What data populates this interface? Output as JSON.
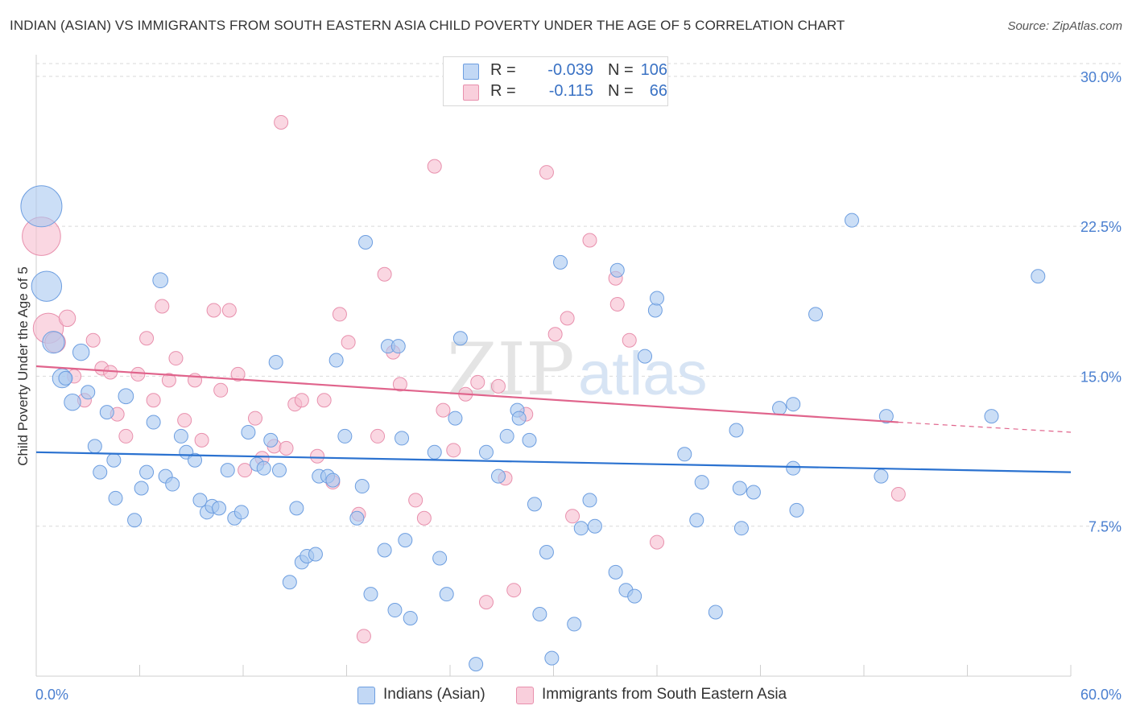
{
  "title": "INDIAN (ASIAN) VS IMMIGRANTS FROM SOUTH EASTERN ASIA CHILD POVERTY UNDER THE AGE OF 5 CORRELATION CHART",
  "source": "Source: ZipAtlas.com",
  "watermark": {
    "zip": "ZIP",
    "atlas": "atlas"
  },
  "legend_top": [
    {
      "r_label": "R =",
      "r_value": "-0.039",
      "n_label": "N =",
      "n_value": "106"
    },
    {
      "r_label": "R =",
      "r_value": "-0.115",
      "n_label": "N =",
      "n_value": "66"
    }
  ],
  "colors": {
    "blue_fill": "#a9c8f0",
    "blue_stroke": "#6d9ee0",
    "blue_line": "#2b72d0",
    "pink_fill": "#f6bccf",
    "pink_stroke": "#e890ad",
    "pink_line": "#e0648c",
    "tick_label": "#4a7fd0",
    "grid": "#d9d9d9"
  },
  "chart_data": {
    "type": "scatter",
    "title": "INDIAN (ASIAN) VS IMMIGRANTS FROM SOUTH EASTERN ASIA CHILD POVERTY UNDER THE AGE OF 5 CORRELATION CHART",
    "xlabel": "",
    "ylabel": "Child Poverty Under the Age of 5",
    "xlim": [
      0,
      60
    ],
    "ylim": [
      0,
      31
    ],
    "x_tick_labels": [
      "0.0%",
      "60.0%"
    ],
    "y_ticks": [
      7.5,
      15.0,
      22.5,
      30.0
    ],
    "y_tick_labels": [
      "7.5%",
      "15.0%",
      "22.5%",
      "30.0%"
    ],
    "legend_position": "top-center",
    "series": [
      {
        "name": "Indians (Asian)",
        "r": -0.039,
        "n": 106,
        "trend": {
          "x": [
            0,
            60
          ],
          "y": [
            11.2,
            10.2
          ]
        },
        "points": [
          [
            0.3,
            23.5,
            3
          ],
          [
            0.6,
            19.5,
            2.2
          ],
          [
            1.0,
            16.7,
            1.6
          ],
          [
            1.5,
            14.9,
            1.4
          ],
          [
            1.7,
            14.9,
            1
          ],
          [
            2.1,
            13.7,
            1.2
          ],
          [
            2.6,
            16.2,
            1.2
          ],
          [
            3.0,
            14.2,
            1
          ],
          [
            3.4,
            11.5,
            1
          ],
          [
            3.7,
            10.2,
            1
          ],
          [
            4.1,
            13.2,
            1
          ],
          [
            4.5,
            10.8,
            1
          ],
          [
            5.2,
            14.0,
            1.1
          ],
          [
            4.6,
            8.9,
            1
          ],
          [
            5.7,
            7.8,
            1
          ],
          [
            6.1,
            9.4,
            1
          ],
          [
            6.4,
            10.2,
            1
          ],
          [
            6.8,
            12.7,
            1
          ],
          [
            7.2,
            19.8,
            1.1
          ],
          [
            7.5,
            10.0,
            1
          ],
          [
            7.9,
            9.6,
            1
          ],
          [
            8.4,
            12.0,
            1
          ],
          [
            8.7,
            11.2,
            1
          ],
          [
            9.2,
            10.8,
            1
          ],
          [
            9.5,
            8.8,
            1
          ],
          [
            9.9,
            8.2,
            1
          ],
          [
            10.2,
            8.5,
            1
          ],
          [
            10.6,
            8.4,
            1
          ],
          [
            11.1,
            10.3,
            1
          ],
          [
            11.5,
            7.9,
            1
          ],
          [
            11.9,
            8.2,
            1
          ],
          [
            12.3,
            12.2,
            1
          ],
          [
            12.8,
            10.6,
            1
          ],
          [
            13.2,
            10.4,
            1
          ],
          [
            13.6,
            11.8,
            1
          ],
          [
            13.9,
            15.7,
            1
          ],
          [
            14.1,
            10.3,
            1
          ],
          [
            14.7,
            4.7,
            1
          ],
          [
            15.1,
            8.4,
            1
          ],
          [
            15.4,
            5.7,
            1
          ],
          [
            15.7,
            6.0,
            1
          ],
          [
            16.2,
            6.1,
            1
          ],
          [
            16.4,
            10.0,
            1
          ],
          [
            16.9,
            10.0,
            1
          ],
          [
            17.2,
            9.8,
            1
          ],
          [
            17.9,
            12.0,
            1
          ],
          [
            17.4,
            15.8,
            1
          ],
          [
            18.6,
            7.9,
            1
          ],
          [
            18.9,
            9.5,
            1
          ],
          [
            19.1,
            21.7,
            1
          ],
          [
            19.4,
            4.1,
            1
          ],
          [
            20.2,
            6.3,
            1
          ],
          [
            20.4,
            16.5,
            1
          ],
          [
            20.8,
            3.3,
            1
          ],
          [
            21.2,
            11.9,
            1
          ],
          [
            21.4,
            6.8,
            1
          ],
          [
            21.7,
            2.9,
            1
          ],
          [
            21.0,
            16.5,
            1
          ],
          [
            23.1,
            11.2,
            1
          ],
          [
            23.4,
            5.9,
            1
          ],
          [
            23.8,
            4.1,
            1
          ],
          [
            24.3,
            12.9,
            1
          ],
          [
            24.6,
            16.9,
            1
          ],
          [
            25.5,
            0.6,
            1
          ],
          [
            26.1,
            11.2,
            1
          ],
          [
            26.8,
            10.0,
            1
          ],
          [
            27.3,
            12.0,
            1
          ],
          [
            27.9,
            13.3,
            1
          ],
          [
            28.0,
            12.9,
            1
          ],
          [
            28.6,
            11.8,
            1
          ],
          [
            28.9,
            8.6,
            1
          ],
          [
            29.2,
            3.1,
            1
          ],
          [
            29.6,
            6.2,
            1
          ],
          [
            29.9,
            0.9,
            1
          ],
          [
            30.4,
            20.7,
            1
          ],
          [
            31.2,
            2.6,
            1
          ],
          [
            31.6,
            7.4,
            1
          ],
          [
            32.1,
            8.8,
            1
          ],
          [
            32.4,
            7.5,
            1
          ],
          [
            33.6,
            5.2,
            1
          ],
          [
            33.7,
            20.3,
            1
          ],
          [
            34.2,
            4.3,
            1
          ],
          [
            34.7,
            4.0,
            1
          ],
          [
            35.3,
            16.0,
            1
          ],
          [
            35.9,
            18.3,
            1
          ],
          [
            36.0,
            18.9,
            1
          ],
          [
            37.6,
            11.1,
            1
          ],
          [
            38.3,
            7.8,
            1
          ],
          [
            38.6,
            9.7,
            1
          ],
          [
            39.4,
            3.2,
            1
          ],
          [
            40.6,
            12.3,
            1
          ],
          [
            40.8,
            9.4,
            1
          ],
          [
            40.9,
            7.4,
            1
          ],
          [
            41.6,
            9.2,
            1
          ],
          [
            43.1,
            13.4,
            1
          ],
          [
            43.9,
            10.4,
            1
          ],
          [
            43.9,
            13.6,
            1
          ],
          [
            44.1,
            8.3,
            1
          ],
          [
            45.2,
            18.1,
            1
          ],
          [
            47.3,
            22.8,
            1
          ],
          [
            49.0,
            10.0,
            1
          ],
          [
            49.3,
            13.0,
            1
          ],
          [
            55.4,
            13.0,
            1
          ],
          [
            58.1,
            20.0,
            1
          ]
        ]
      },
      {
        "name": "Immigrants from South Eastern Asia",
        "r": -0.115,
        "n": 66,
        "trend": {
          "x": [
            0,
            50
          ],
          "y": [
            15.5,
            12.7
          ]
        },
        "trend_dashed": {
          "x": [
            50,
            60
          ],
          "y": [
            12.7,
            12.2
          ]
        },
        "points": [
          [
            0.3,
            22.0,
            2.8
          ],
          [
            0.7,
            17.4,
            2.2
          ],
          [
            1.1,
            16.7,
            1.5
          ],
          [
            1.8,
            17.9,
            1.2
          ],
          [
            2.2,
            15.0,
            1
          ],
          [
            2.8,
            13.8,
            1
          ],
          [
            3.3,
            16.8,
            1
          ],
          [
            3.8,
            15.4,
            1
          ],
          [
            4.3,
            15.2,
            1
          ],
          [
            4.7,
            13.1,
            1
          ],
          [
            5.2,
            12.0,
            1
          ],
          [
            5.9,
            15.1,
            1
          ],
          [
            6.4,
            16.9,
            1
          ],
          [
            6.8,
            13.8,
            1
          ],
          [
            7.3,
            18.5,
            1
          ],
          [
            7.7,
            14.8,
            1
          ],
          [
            8.1,
            15.9,
            1
          ],
          [
            8.6,
            12.8,
            1
          ],
          [
            9.2,
            14.8,
            1
          ],
          [
            9.6,
            11.8,
            1
          ],
          [
            10.3,
            18.3,
            1
          ],
          [
            10.7,
            14.3,
            1
          ],
          [
            11.2,
            18.3,
            1
          ],
          [
            11.7,
            15.1,
            1
          ],
          [
            12.1,
            10.3,
            1
          ],
          [
            12.7,
            12.9,
            1
          ],
          [
            13.1,
            10.9,
            1
          ],
          [
            13.8,
            11.5,
            1
          ],
          [
            14.2,
            27.7,
            1
          ],
          [
            14.5,
            11.4,
            1
          ],
          [
            15.0,
            13.6,
            1
          ],
          [
            15.4,
            13.8,
            1
          ],
          [
            16.3,
            11.0,
            1
          ],
          [
            16.7,
            13.8,
            1
          ],
          [
            17.2,
            9.7,
            1
          ],
          [
            17.6,
            18.1,
            1
          ],
          [
            18.1,
            16.7,
            1
          ],
          [
            18.7,
            8.1,
            1
          ],
          [
            19.0,
            2.0,
            1
          ],
          [
            19.8,
            12.0,
            1
          ],
          [
            20.2,
            20.1,
            1
          ],
          [
            20.7,
            16.2,
            1
          ],
          [
            21.1,
            14.6,
            1
          ],
          [
            22.0,
            8.8,
            1
          ],
          [
            22.5,
            7.9,
            1
          ],
          [
            23.1,
            25.5,
            1
          ],
          [
            23.6,
            13.3,
            1
          ],
          [
            24.2,
            11.3,
            1
          ],
          [
            24.9,
            14.1,
            1
          ],
          [
            25.6,
            14.7,
            1
          ],
          [
            26.1,
            3.7,
            1
          ],
          [
            26.8,
            14.5,
            1
          ],
          [
            27.2,
            9.9,
            1
          ],
          [
            27.7,
            4.3,
            1
          ],
          [
            28.4,
            13.1,
            1
          ],
          [
            29.6,
            25.2,
            1
          ],
          [
            30.1,
            17.1,
            1
          ],
          [
            30.8,
            17.9,
            1
          ],
          [
            31.1,
            8.0,
            1
          ],
          [
            32.1,
            21.8,
            1
          ],
          [
            33.6,
            19.9,
            1
          ],
          [
            33.7,
            18.6,
            1
          ],
          [
            34.4,
            16.8,
            1
          ],
          [
            36.0,
            6.7,
            1
          ],
          [
            50.0,
            9.1,
            1
          ]
        ]
      }
    ]
  },
  "legend_bottom": [
    "Indians (Asian)",
    "Immigrants from South Eastern Asia"
  ]
}
